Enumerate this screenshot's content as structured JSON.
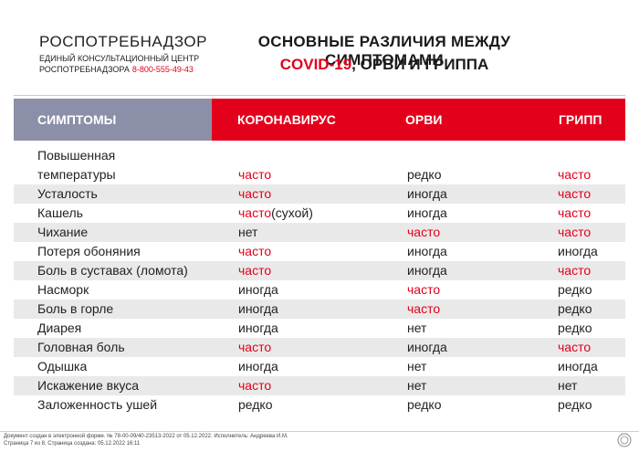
{
  "header": {
    "org": "РОСПОТРЕБНАДЗОР",
    "center_line": "ЕДИНЫЙ КОНСУЛЬТАЦИОННЫЙ ЦЕНТР",
    "center_line2": "РОСПОТРЕБНАДЗОРА",
    "phone": "8-800-555-49-43",
    "title_line1": "ОСНОВНЫЕ РАЗЛИЧИЯ МЕЖДУ СИМПТОМАМИ",
    "title_red": "COVID-19",
    "title_rest": ", ОРВИ И ГРИППА"
  },
  "table": {
    "columns": [
      "СИМПТОМЫ",
      "КОРОНАВИРУС",
      "ОРВИ",
      "ГРИПП"
    ],
    "rows": [
      {
        "symptom_line1": "Повышенная",
        "symptom": "температуры",
        "covid": "часто",
        "orvi": "редко",
        "flu": "часто"
      },
      {
        "symptom": "Усталость",
        "covid": "часто",
        "orvi": "иногда",
        "flu": "часто"
      },
      {
        "symptom": "Кашель",
        "covid": "часто",
        "covid_extra": "(сухой)",
        "orvi": "иногда",
        "flu": "часто"
      },
      {
        "symptom": "Чихание",
        "covid": "нет",
        "orvi": "часто",
        "flu": "часто"
      },
      {
        "symptom": "Потеря обоняния",
        "covid": "часто",
        "orvi": "иногда",
        "flu": "иногда"
      },
      {
        "symptom": "Боль в суставах (ломота)",
        "covid": "часто",
        "orvi": "иногда",
        "flu": "часто"
      },
      {
        "symptom": "Насморк",
        "covid": "иногда",
        "orvi": "часто",
        "flu": "редко"
      },
      {
        "symptom": "Боль в горле",
        "covid": "иногда",
        "orvi": "часто",
        "flu": "редко"
      },
      {
        "symptom": "Диарея",
        "covid": "иногда",
        "orvi": "нет",
        "flu": "редко"
      },
      {
        "symptom": "Головная боль",
        "covid": "часто",
        "orvi": "иногда",
        "flu": "часто"
      },
      {
        "symptom": "Одышка",
        "covid": "иногда",
        "orvi": "нет",
        "flu": "иногда"
      },
      {
        "symptom": "Искажение вкуса",
        "covid": "часто",
        "orvi": "нет",
        "flu": "нет"
      },
      {
        "symptom": "Заложенность ушей",
        "covid": "редко",
        "orvi": "редко",
        "flu": "редко"
      }
    ]
  },
  "footer": {
    "line1": "Документ создан в электронной форме. № 78-00-09/40-23513-2022 от 05.12.2022. Исполнитель: Андреева И.М.",
    "line2": "Страница 7 из 8. Страница создана: 05.12.2022 16:11"
  },
  "colors": {
    "accent_red": "#e3001b",
    "header_gray": "#8b90a8",
    "stripe": "#e9e9e9"
  }
}
